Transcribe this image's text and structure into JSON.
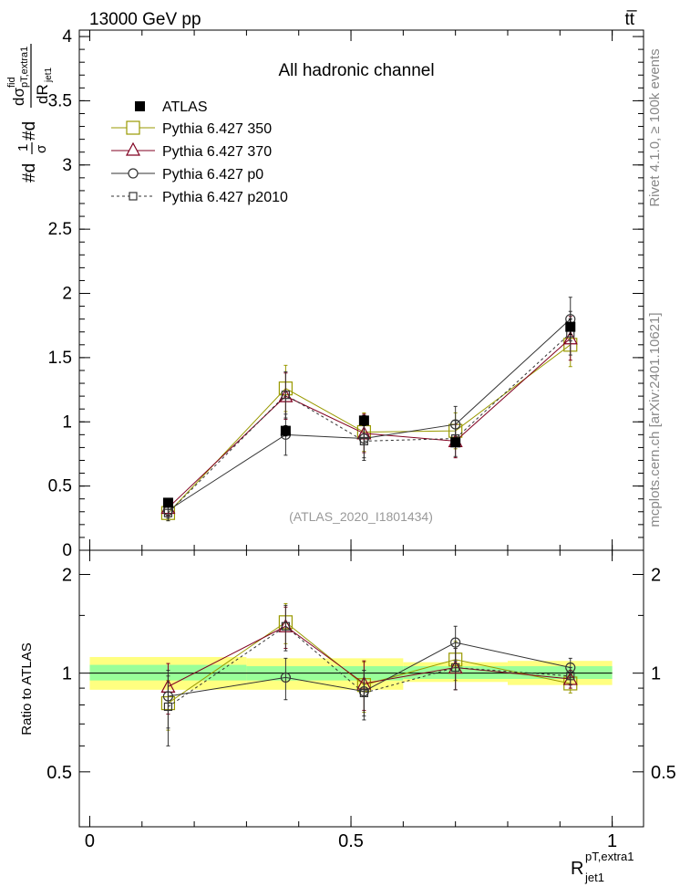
{
  "header": {
    "left": "13000 GeV pp",
    "right": "tt̅"
  },
  "side_labels": {
    "rivet": "Rivet 4.1.0, ≥ 100k events",
    "mcplots": "mcplots.cern.ch [arXiv:2401.10621]"
  },
  "colors": {
    "atlas": "#000000",
    "p350": "#999900",
    "p370": "#800020",
    "p0": "#333333",
    "p2010": "#333333",
    "band_inner": "#99ff99",
    "band_outer": "#ffff80",
    "watermark": "#999999"
  },
  "chart_data": [
    {
      "type": "scatter",
      "title": "All hadronic channel",
      "watermark": "(ATLAS_2020_I1801434)",
      "ylabel": "#d (1/σ) #d dσ^fid_pT,extra1 / dR_jet1",
      "ylabel_parts": {
        "num_sym": "dσ",
        "num_sup": "fid",
        "num_sub": "pT,extra1",
        "den": "dR",
        "den_sub": "jet1",
        "prefix": "#d",
        "frac1_num": "1",
        "frac1_den": "σ",
        "mid": "#d"
      },
      "xlim": [
        -0.02,
        1.06
      ],
      "ylim": [
        0,
        4.05
      ],
      "yticks": [
        "0.5",
        "1",
        "1.5",
        "2",
        "2.5",
        "3",
        "3.5",
        "4"
      ],
      "ytick_values": [
        0.5,
        1,
        1.5,
        2,
        2.5,
        3,
        3.5,
        4
      ],
      "ytick_bottom_label": "0",
      "x": [
        0.15,
        0.375,
        0.525,
        0.7,
        0.92
      ],
      "series": [
        {
          "name": "ATLAS",
          "marker": "filled-square",
          "values": [
            0.37,
            0.93,
            1.01,
            0.84,
            1.74
          ],
          "err": [
            0.02,
            0.04,
            0.04,
            0.03,
            0.06
          ]
        },
        {
          "name": "Pythia 6.427 350",
          "marker": "open-square",
          "values": [
            0.29,
            1.26,
            0.92,
            0.93,
            1.6
          ],
          "err": [
            0.06,
            0.18,
            0.15,
            0.14,
            0.17
          ]
        },
        {
          "name": "Pythia 6.427 370",
          "marker": "open-triangle",
          "values": [
            0.33,
            1.2,
            0.91,
            0.85,
            1.65
          ],
          "err": [
            0.06,
            0.18,
            0.15,
            0.13,
            0.17
          ]
        },
        {
          "name": "Pythia 6.427 p0",
          "marker": "open-circle",
          "values": [
            0.31,
            0.9,
            0.87,
            0.98,
            1.8
          ],
          "err": [
            0.06,
            0.16,
            0.15,
            0.14,
            0.17
          ]
        },
        {
          "name": "Pythia 6.427 p2010",
          "marker": "open-square-dashed",
          "values": [
            0.29,
            1.21,
            0.85,
            0.87,
            1.69
          ],
          "err": [
            0.06,
            0.18,
            0.15,
            0.14,
            0.17
          ]
        }
      ]
    },
    {
      "type": "scatter",
      "ylabel": "Ratio to ATLAS",
      "xlabel": "R_jet1^pT,extra1",
      "xlabel_parts": {
        "base": "R",
        "sup": "pT,extra1",
        "sub": "jet1"
      },
      "xlim": [
        -0.02,
        1.06
      ],
      "ylim": [
        0.34,
        2.37
      ],
      "xticks": [
        "0",
        "0.5",
        "1"
      ],
      "xtick_values": [
        0,
        0.5,
        1
      ],
      "yticks": [
        "0.5",
        "1",
        "2"
      ],
      "ytick_values": [
        0.5,
        1,
        2
      ],
      "bands": [
        {
          "x0": 0.0,
          "x1": 0.3,
          "inner": [
            0.95,
            1.06
          ],
          "outer": [
            0.89,
            1.12
          ]
        },
        {
          "x0": 0.3,
          "x1": 0.6,
          "inner": [
            0.95,
            1.05
          ],
          "outer": [
            0.89,
            1.11
          ]
        },
        {
          "x0": 0.6,
          "x1": 0.8,
          "inner": [
            0.96,
            1.05
          ],
          "outer": [
            0.94,
            1.08
          ]
        },
        {
          "x0": 0.8,
          "x1": 1.0,
          "inner": [
            0.96,
            1.05
          ],
          "outer": [
            0.92,
            1.09
          ]
        }
      ],
      "series": [
        {
          "name": "Pythia 6.427 350",
          "values": [
            0.81,
            1.43,
            0.92,
            1.1,
            0.93
          ],
          "err": [
            0.14,
            0.2,
            0.16,
            0.15,
            0.06
          ]
        },
        {
          "name": "Pythia 6.427 370",
          "values": [
            0.91,
            1.39,
            0.93,
            1.04,
            0.96
          ],
          "err": [
            0.16,
            0.2,
            0.16,
            0.15,
            0.06
          ]
        },
        {
          "name": "Pythia 6.427 p0",
          "values": [
            0.85,
            0.97,
            0.88,
            1.24,
            1.04
          ],
          "err": [
            0.17,
            0.14,
            0.14,
            0.15,
            0.07
          ]
        },
        {
          "name": "Pythia 6.427 p2010",
          "values": [
            0.79,
            1.39,
            0.87,
            1.04,
            0.98
          ],
          "err": [
            0.19,
            0.22,
            0.15,
            0.15,
            0.06
          ]
        }
      ]
    }
  ]
}
